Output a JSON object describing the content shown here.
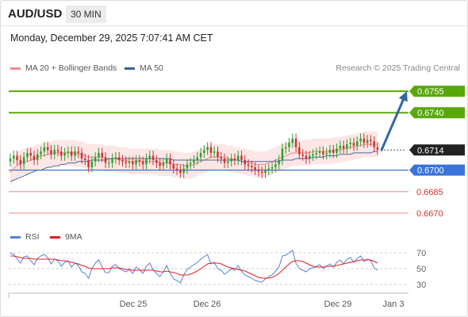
{
  "header": {
    "pair": "AUD/USD",
    "timeframe": "30 MIN",
    "datetime": "Monday, December 29, 2025 7:07:41 AM CET"
  },
  "credit": "Research © 2025 Trading Central",
  "legend": {
    "price": [
      {
        "label": "MA 20 + Bollinger Bands",
        "color": "#f08c8c"
      },
      {
        "label": "MA 50",
        "color": "#3a5f95"
      }
    ],
    "rsi": [
      {
        "label": "RSI",
        "color": "#5a7fd6"
      },
      {
        "label": "9MA",
        "color": "#e02020"
      }
    ]
  },
  "colors": {
    "up": "#2e9e2e",
    "down": "#d43030",
    "target": "#59a80a",
    "pivot": "#3a74d8",
    "support": "#f3a0a0",
    "arrow": "#3465a4",
    "last": "#222222",
    "band": "#fde3e3"
  },
  "chart_data": {
    "type": "candlestick",
    "y_range": [
      0.666,
      0.6765
    ],
    "x_ticks": [
      "Dec 25",
      "Dec 26",
      "Dec 29",
      "Jan 3"
    ],
    "levels": [
      {
        "value": 0.6755,
        "label": "0.6755",
        "kind": "target"
      },
      {
        "value": 0.674,
        "label": "0.6740",
        "kind": "target"
      },
      {
        "value": 0.6714,
        "label": "0.6714",
        "kind": "last"
      },
      {
        "value": 0.67,
        "label": "0.6700",
        "kind": "pivot"
      },
      {
        "value": 0.6685,
        "label": "0.6685",
        "kind": "support"
      },
      {
        "value": 0.667,
        "label": "0.6670",
        "kind": "support"
      }
    ],
    "closes": [
      0.6708,
      0.671,
      0.6707,
      0.6704,
      0.6709,
      0.6712,
      0.671,
      0.6707,
      0.6711,
      0.6713,
      0.6716,
      0.6714,
      0.6711,
      0.6714,
      0.6713,
      0.671,
      0.6712,
      0.6713,
      0.671,
      0.6713,
      0.6712,
      0.6708,
      0.6707,
      0.6702,
      0.6706,
      0.6709,
      0.6712,
      0.6709,
      0.6705,
      0.6705,
      0.6708,
      0.6709,
      0.6707,
      0.6706,
      0.6705,
      0.6706,
      0.6704,
      0.6707,
      0.6706,
      0.6704,
      0.6708,
      0.671,
      0.6707,
      0.6705,
      0.6703,
      0.6705,
      0.6708,
      0.6704,
      0.6701,
      0.67,
      0.6698,
      0.6701,
      0.6704,
      0.6705,
      0.6707,
      0.6709,
      0.6712,
      0.6714,
      0.6716,
      0.6712,
      0.6713,
      0.6709,
      0.6708,
      0.6705,
      0.6706,
      0.6708,
      0.6707,
      0.671,
      0.6707,
      0.6704,
      0.6703,
      0.6702,
      0.67,
      0.6699,
      0.6698,
      0.67,
      0.6701,
      0.6702,
      0.6704,
      0.6707,
      0.6715,
      0.6716,
      0.6719,
      0.6722,
      0.6716,
      0.6711,
      0.671,
      0.6708,
      0.671,
      0.6711,
      0.6712,
      0.6713,
      0.6711,
      0.6712,
      0.6714,
      0.6712,
      0.6715,
      0.6717,
      0.6715,
      0.6718,
      0.6719,
      0.6717,
      0.672,
      0.6722,
      0.6719,
      0.6721,
      0.672,
      0.6716,
      0.6714
    ],
    "ma20": [
      0.6698,
      0.6701,
      0.6703,
      0.6705,
      0.6706,
      0.6706,
      0.6707,
      0.6708,
      0.6709,
      0.671,
      0.671,
      0.6711,
      0.6711,
      0.6712,
      0.6712,
      0.6712,
      0.6712,
      0.6712,
      0.6712,
      0.6712,
      0.6711,
      0.6711,
      0.671,
      0.6709,
      0.6709,
      0.6709,
      0.6709,
      0.6709,
      0.6708,
      0.6708,
      0.6708,
      0.6708,
      0.6707,
      0.6707,
      0.6707,
      0.6706,
      0.6706,
      0.6706,
      0.6706,
      0.6706,
      0.6706,
      0.6706,
      0.6706,
      0.6706,
      0.6705,
      0.6705,
      0.6705,
      0.6705,
      0.6704,
      0.6704,
      0.6704,
      0.6703,
      0.6703,
      0.6703,
      0.6704,
      0.6705,
      0.6706,
      0.6707,
      0.6708,
      0.6709,
      0.6709,
      0.6709,
      0.6709,
      0.6709,
      0.6708,
      0.6708,
      0.6707,
      0.6707,
      0.6706,
      0.6706,
      0.6705,
      0.6705,
      0.6704,
      0.6704,
      0.6704,
      0.6704,
      0.6705,
      0.6706,
      0.6707,
      0.6708,
      0.6709,
      0.671,
      0.6711,
      0.6712,
      0.6712,
      0.6712,
      0.6712,
      0.6712,
      0.6712,
      0.6713,
      0.6713,
      0.6713,
      0.6713,
      0.6713,
      0.6713,
      0.6714,
      0.6714,
      0.6714,
      0.6715,
      0.6715,
      0.6716,
      0.6716,
      0.6717,
      0.6717,
      0.6718,
      0.6718,
      0.6718,
      0.6718,
      0.6718
    ],
    "ma50": [
      0.6692,
      0.6693,
      0.6694,
      0.6695,
      0.6696,
      0.6697,
      0.6698,
      0.6699,
      0.67,
      0.67,
      0.6701,
      0.6702,
      0.6702,
      0.6703,
      0.6703,
      0.6704,
      0.6704,
      0.6705,
      0.6705,
      0.6705,
      0.6706,
      0.6706,
      0.6706,
      0.6706,
      0.6707,
      0.6707,
      0.6707,
      0.6707,
      0.6707,
      0.6708,
      0.6708,
      0.6708,
      0.6708,
      0.6708,
      0.6708,
      0.6708,
      0.6708,
      0.6708,
      0.6708,
      0.6708,
      0.6708,
      0.6708,
      0.6708,
      0.6708,
      0.6708,
      0.6708,
      0.6708,
      0.6708,
      0.6707,
      0.6707,
      0.6707,
      0.6707,
      0.6707,
      0.6707,
      0.6707,
      0.6707,
      0.6707,
      0.6707,
      0.6707,
      0.6707,
      0.6707,
      0.6707,
      0.6707,
      0.6707,
      0.6707,
      0.6707,
      0.6707,
      0.6707,
      0.6706,
      0.6706,
      0.6706,
      0.6706,
      0.6706,
      0.6706,
      0.6706,
      0.6706,
      0.6706,
      0.6706,
      0.6706,
      0.6706,
      0.6707,
      0.6707,
      0.6707,
      0.6707,
      0.6708,
      0.6708,
      0.6708,
      0.6708,
      0.6708,
      0.6709,
      0.6709,
      0.6709,
      0.6709,
      0.671,
      0.671,
      0.671,
      0.671,
      0.6711,
      0.6711,
      0.6711,
      0.6711,
      0.6712,
      0.6712,
      0.6712,
      0.6712,
      0.6712,
      0.6712,
      0.6713,
      0.6713
    ],
    "band_width": 0.0009,
    "target_value": 0.6755,
    "rsi": {
      "y_range": [
        20,
        80
      ],
      "ticks": [
        70,
        50,
        30
      ],
      "rsi": [
        70,
        68,
        62,
        57,
        65,
        66,
        60,
        55,
        63,
        66,
        68,
        64,
        56,
        62,
        60,
        53,
        58,
        60,
        52,
        57,
        54,
        46,
        44,
        38,
        50,
        57,
        61,
        52,
        45,
        45,
        53,
        55,
        50,
        48,
        46,
        49,
        44,
        52,
        49,
        44,
        53,
        57,
        48,
        44,
        40,
        46,
        54,
        44,
        37,
        35,
        32,
        42,
        49,
        52,
        55,
        58,
        62,
        65,
        68,
        56,
        58,
        50,
        48,
        43,
        46,
        50,
        48,
        54,
        47,
        42,
        40,
        38,
        35,
        34,
        33,
        37,
        40,
        42,
        47,
        52,
        66,
        67,
        70,
        73,
        57,
        50,
        48,
        46,
        50,
        51,
        53,
        55,
        50,
        53,
        56,
        52,
        58,
        61,
        56,
        62,
        64,
        58,
        63,
        66,
        59,
        62,
        60,
        51,
        48
      ],
      "ma9": [
        66,
        66,
        65,
        64,
        63,
        63,
        63,
        62,
        62,
        62,
        62,
        62,
        62,
        62,
        61,
        60,
        60,
        59,
        58,
        57,
        56,
        54,
        53,
        51,
        50,
        50,
        50,
        50,
        50,
        50,
        51,
        51,
        51,
        50,
        49,
        49,
        48,
        48,
        48,
        48,
        48,
        48,
        48,
        47,
        46,
        46,
        47,
        46,
        45,
        44,
        42,
        42,
        42,
        43,
        45,
        47,
        50,
        53,
        56,
        57,
        57,
        57,
        56,
        54,
        52,
        51,
        50,
        49,
        48,
        47,
        45,
        43,
        41,
        39,
        38,
        38,
        38,
        39,
        41,
        44,
        48,
        52,
        56,
        59,
        60,
        60,
        59,
        57,
        55,
        53,
        52,
        52,
        52,
        53,
        53,
        53,
        54,
        55,
        56,
        57,
        58,
        59,
        60,
        61,
        61,
        61,
        61,
        59,
        57
      ]
    }
  }
}
